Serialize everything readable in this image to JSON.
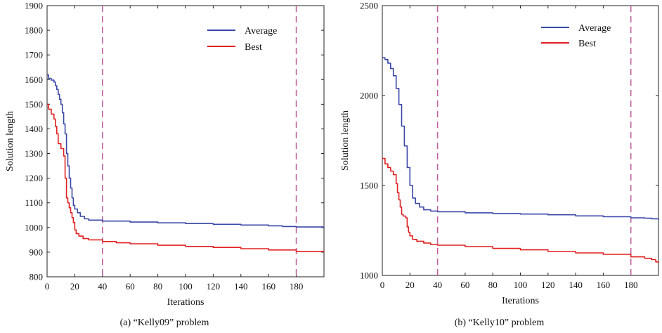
{
  "chart_data": [
    {
      "type": "line",
      "caption": "(a)  “Kelly09” problem",
      "xlabel": "Iterations",
      "ylabel": "Solution length",
      "xlim": [
        0,
        200
      ],
      "ylim": [
        800,
        1900
      ],
      "xticks": [
        0,
        20,
        40,
        60,
        80,
        100,
        120,
        140,
        160,
        180
      ],
      "yticks": [
        800,
        900,
        1000,
        1100,
        1200,
        1300,
        1400,
        1500,
        1600,
        1700,
        1800,
        1900
      ],
      "grid": false,
      "legend_position": "top-right",
      "vlines": [
        40,
        180
      ],
      "series": [
        {
          "name": "Average",
          "color": "#3a47a8",
          "points": [
            [
              0,
              1620
            ],
            [
              1,
              1605
            ],
            [
              3,
              1598
            ],
            [
              5,
              1590
            ],
            [
              6,
              1575
            ],
            [
              7,
              1560
            ],
            [
              8,
              1540
            ],
            [
              9,
              1520
            ],
            [
              10,
              1500
            ],
            [
              11,
              1465
            ],
            [
              12,
              1420
            ],
            [
              13,
              1380
            ],
            [
              14,
              1300
            ],
            [
              15,
              1250
            ],
            [
              16,
              1200
            ],
            [
              17,
              1160
            ],
            [
              18,
              1120
            ],
            [
              19,
              1090
            ],
            [
              20,
              1075
            ],
            [
              22,
              1060
            ],
            [
              24,
              1045
            ],
            [
              27,
              1035
            ],
            [
              30,
              1030
            ],
            [
              40,
              1026
            ],
            [
              60,
              1022
            ],
            [
              80,
              1019
            ],
            [
              100,
              1016
            ],
            [
              120,
              1013
            ],
            [
              140,
              1010
            ],
            [
              160,
              1007
            ],
            [
              170,
              1004
            ],
            [
              180,
              1002
            ],
            [
              200,
              1000
            ]
          ]
        },
        {
          "name": "Best",
          "color": "#e02020",
          "points": [
            [
              0,
              1500
            ],
            [
              1,
              1480
            ],
            [
              3,
              1460
            ],
            [
              5,
              1440
            ],
            [
              6,
              1410
            ],
            [
              7,
              1380
            ],
            [
              8,
              1340
            ],
            [
              10,
              1320
            ],
            [
              12,
              1290
            ],
            [
              13,
              1200
            ],
            [
              14,
              1120
            ],
            [
              15,
              1100
            ],
            [
              16,
              1080
            ],
            [
              17,
              1060
            ],
            [
              18,
              1040
            ],
            [
              19,
              1020
            ],
            [
              20,
              990
            ],
            [
              21,
              975
            ],
            [
              23,
              965
            ],
            [
              26,
              955
            ],
            [
              30,
              950
            ],
            [
              40,
              943
            ],
            [
              50,
              938
            ],
            [
              60,
              934
            ],
            [
              80,
              928
            ],
            [
              100,
              923
            ],
            [
              120,
              919
            ],
            [
              140,
              914
            ],
            [
              160,
              909
            ],
            [
              180,
              903
            ],
            [
              200,
              901
            ]
          ]
        }
      ]
    },
    {
      "type": "line",
      "caption": "(b)  “Kelly10” problem",
      "xlabel": "Iterations",
      "ylabel": "Solution length",
      "xlim": [
        0,
        200
      ],
      "ylim": [
        1000,
        2500
      ],
      "xticks": [
        0,
        20,
        40,
        60,
        80,
        100,
        120,
        140,
        160,
        180
      ],
      "yticks": [
        1000,
        1500,
        2000,
        2500
      ],
      "grid": false,
      "legend_position": "top-right",
      "vlines": [
        40,
        180
      ],
      "series": [
        {
          "name": "Average",
          "color": "#3a47a8",
          "points": [
            [
              0,
              2210
            ],
            [
              2,
              2200
            ],
            [
              4,
              2180
            ],
            [
              6,
              2150
            ],
            [
              8,
              2110
            ],
            [
              10,
              2040
            ],
            [
              12,
              1950
            ],
            [
              14,
              1830
            ],
            [
              16,
              1720
            ],
            [
              18,
              1600
            ],
            [
              20,
              1500
            ],
            [
              22,
              1430
            ],
            [
              24,
              1400
            ],
            [
              27,
              1380
            ],
            [
              30,
              1365
            ],
            [
              35,
              1358
            ],
            [
              40,
              1354
            ],
            [
              60,
              1348
            ],
            [
              80,
              1344
            ],
            [
              100,
              1341
            ],
            [
              120,
              1337
            ],
            [
              140,
              1331
            ],
            [
              160,
              1326
            ],
            [
              180,
              1320
            ],
            [
              190,
              1318
            ],
            [
              195,
              1315
            ],
            [
              200,
              1308
            ]
          ]
        },
        {
          "name": "Best",
          "color": "#e02020",
          "points": [
            [
              0,
              1650
            ],
            [
              2,
              1620
            ],
            [
              4,
              1600
            ],
            [
              6,
              1580
            ],
            [
              8,
              1560
            ],
            [
              10,
              1510
            ],
            [
              11,
              1460
            ],
            [
              12,
              1420
            ],
            [
              13,
              1380
            ],
            [
              14,
              1340
            ],
            [
              15,
              1330
            ],
            [
              17,
              1320
            ],
            [
              18,
              1270
            ],
            [
              19,
              1240
            ],
            [
              20,
              1220
            ],
            [
              22,
              1200
            ],
            [
              25,
              1190
            ],
            [
              30,
              1180
            ],
            [
              35,
              1172
            ],
            [
              40,
              1168
            ],
            [
              60,
              1160
            ],
            [
              80,
              1150
            ],
            [
              100,
              1142
            ],
            [
              120,
              1133
            ],
            [
              140,
              1125
            ],
            [
              160,
              1117
            ],
            [
              180,
              1103
            ],
            [
              190,
              1095
            ],
            [
              195,
              1088
            ],
            [
              198,
              1075
            ],
            [
              200,
              1070
            ]
          ]
        }
      ]
    }
  ]
}
